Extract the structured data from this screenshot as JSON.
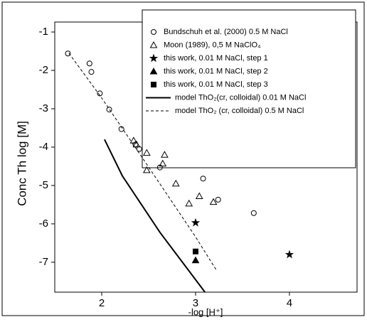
{
  "chart_data": {
    "type": "scatter",
    "x_label": "-log [H⁺]",
    "y_label": "Conc Th  log [M]",
    "xlim": [
      1.5,
      4.72
    ],
    "ylim": [
      -7.78,
      -0.74
    ],
    "xticks": [
      2,
      3,
      4
    ],
    "yticks": [
      -1,
      -2,
      -3,
      -4,
      -5,
      -6,
      -7
    ],
    "legend_position": "upper right",
    "series": [
      {
        "name": "Bundschuh et al. (2000)  0.5 M NaCl",
        "kind": "points",
        "marker": "circle",
        "fill": "none",
        "color": "#000000",
        "x": [
          1.64,
          1.87,
          1.89,
          1.98,
          2.08,
          2.21,
          2.36,
          2.4,
          2.62,
          3.08,
          3.24,
          3.62
        ],
        "values": [
          -1.56,
          -1.82,
          -2.04,
          -2.6,
          -3.02,
          -3.53,
          -3.93,
          -4.05,
          -4.53,
          -4.82,
          -5.37,
          -5.72
        ]
      },
      {
        "name": "Moon (1989), 0,5 M NaClO₄",
        "kind": "points",
        "marker": "triangle",
        "fill": "none",
        "color": "#000000",
        "x": [
          2.34,
          2.37,
          2.48,
          2.48,
          2.65,
          2.67,
          2.79,
          2.93,
          3.04,
          3.19
        ],
        "values": [
          -3.83,
          -3.93,
          -4.15,
          -4.6,
          -4.43,
          -4.2,
          -4.95,
          -5.47,
          -5.28,
          -5.43
        ]
      },
      {
        "name": "this work, 0.01 M NaCl, step 1",
        "kind": "points",
        "marker": "star",
        "fill": "#000000",
        "color": "#000000",
        "x": [
          3.0,
          4.0
        ],
        "values": [
          -5.97,
          -6.8
        ]
      },
      {
        "name": "this work, 0.01 M NaCl, step 2",
        "kind": "points",
        "marker": "triangle",
        "fill": "#000000",
        "color": "#000000",
        "x": [
          3.0
        ],
        "values": [
          -6.95
        ]
      },
      {
        "name": "this work, 0.01 M NaCl, step 3",
        "kind": "points",
        "marker": "square",
        "fill": "#000000",
        "color": "#000000",
        "x": [
          3.0
        ],
        "values": [
          -6.72
        ]
      },
      {
        "name": "model ThO₂(cr, colloidal) 0.01 M NaCl",
        "kind": "line",
        "dash": "none",
        "color": "#000000",
        "x": [
          2.03,
          2.22,
          2.62,
          3.1
        ],
        "values": [
          -3.8,
          -4.75,
          -6.22,
          -7.78
        ]
      },
      {
        "name": "model ThO₂ (cr, colloidal) 0.5 M NaCl",
        "kind": "line",
        "dash": "4 3",
        "color": "#000000",
        "x": [
          1.65,
          2.0,
          2.5,
          3.0,
          3.22
        ],
        "values": [
          -1.55,
          -2.72,
          -4.52,
          -6.34,
          -7.2
        ]
      }
    ]
  }
}
